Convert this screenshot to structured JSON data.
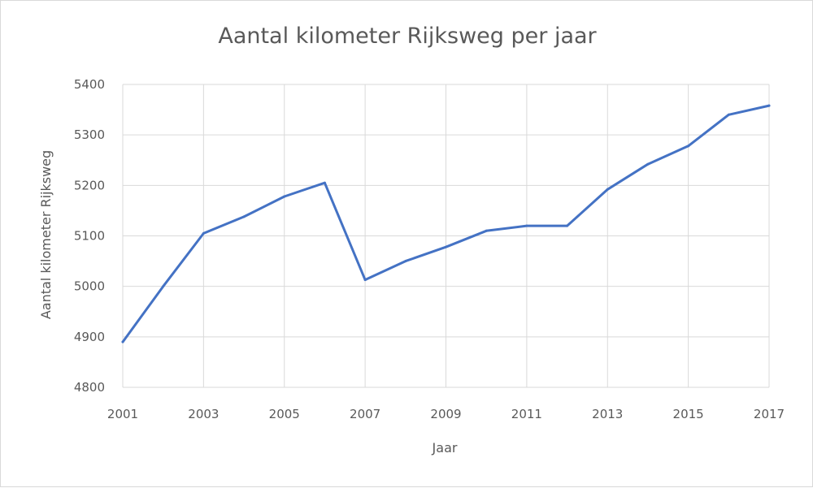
{
  "chart_data": {
    "type": "line",
    "title": "Aantal kilometer Rijksweg per jaar",
    "xlabel": "Jaar",
    "ylabel": "Aantal kilometer Rijksweg",
    "xlim": [
      2001,
      2017
    ],
    "ylim": [
      4800,
      5400
    ],
    "x_ticks": [
      "2001",
      "2003",
      "2005",
      "2007",
      "2009",
      "2011",
      "2013",
      "2015",
      "2017"
    ],
    "y_ticks": [
      "4800",
      "4900",
      "5000",
      "5100",
      "5200",
      "5300",
      "5400"
    ],
    "grid": true,
    "legend": "none",
    "series": [
      {
        "color": "#4472c4",
        "x": [
          2001,
          2002,
          2003,
          2004,
          2005,
          2006,
          2007,
          2008,
          2009,
          2010,
          2011,
          2012,
          2013,
          2014,
          2015,
          2016,
          2017
        ],
        "y": [
          4890,
          5000,
          5105,
          5138,
          5178,
          5205,
          5013,
          5050,
          5078,
          5110,
          5120,
          5120,
          5192,
          5242,
          5278,
          5340,
          5358
        ]
      }
    ]
  }
}
